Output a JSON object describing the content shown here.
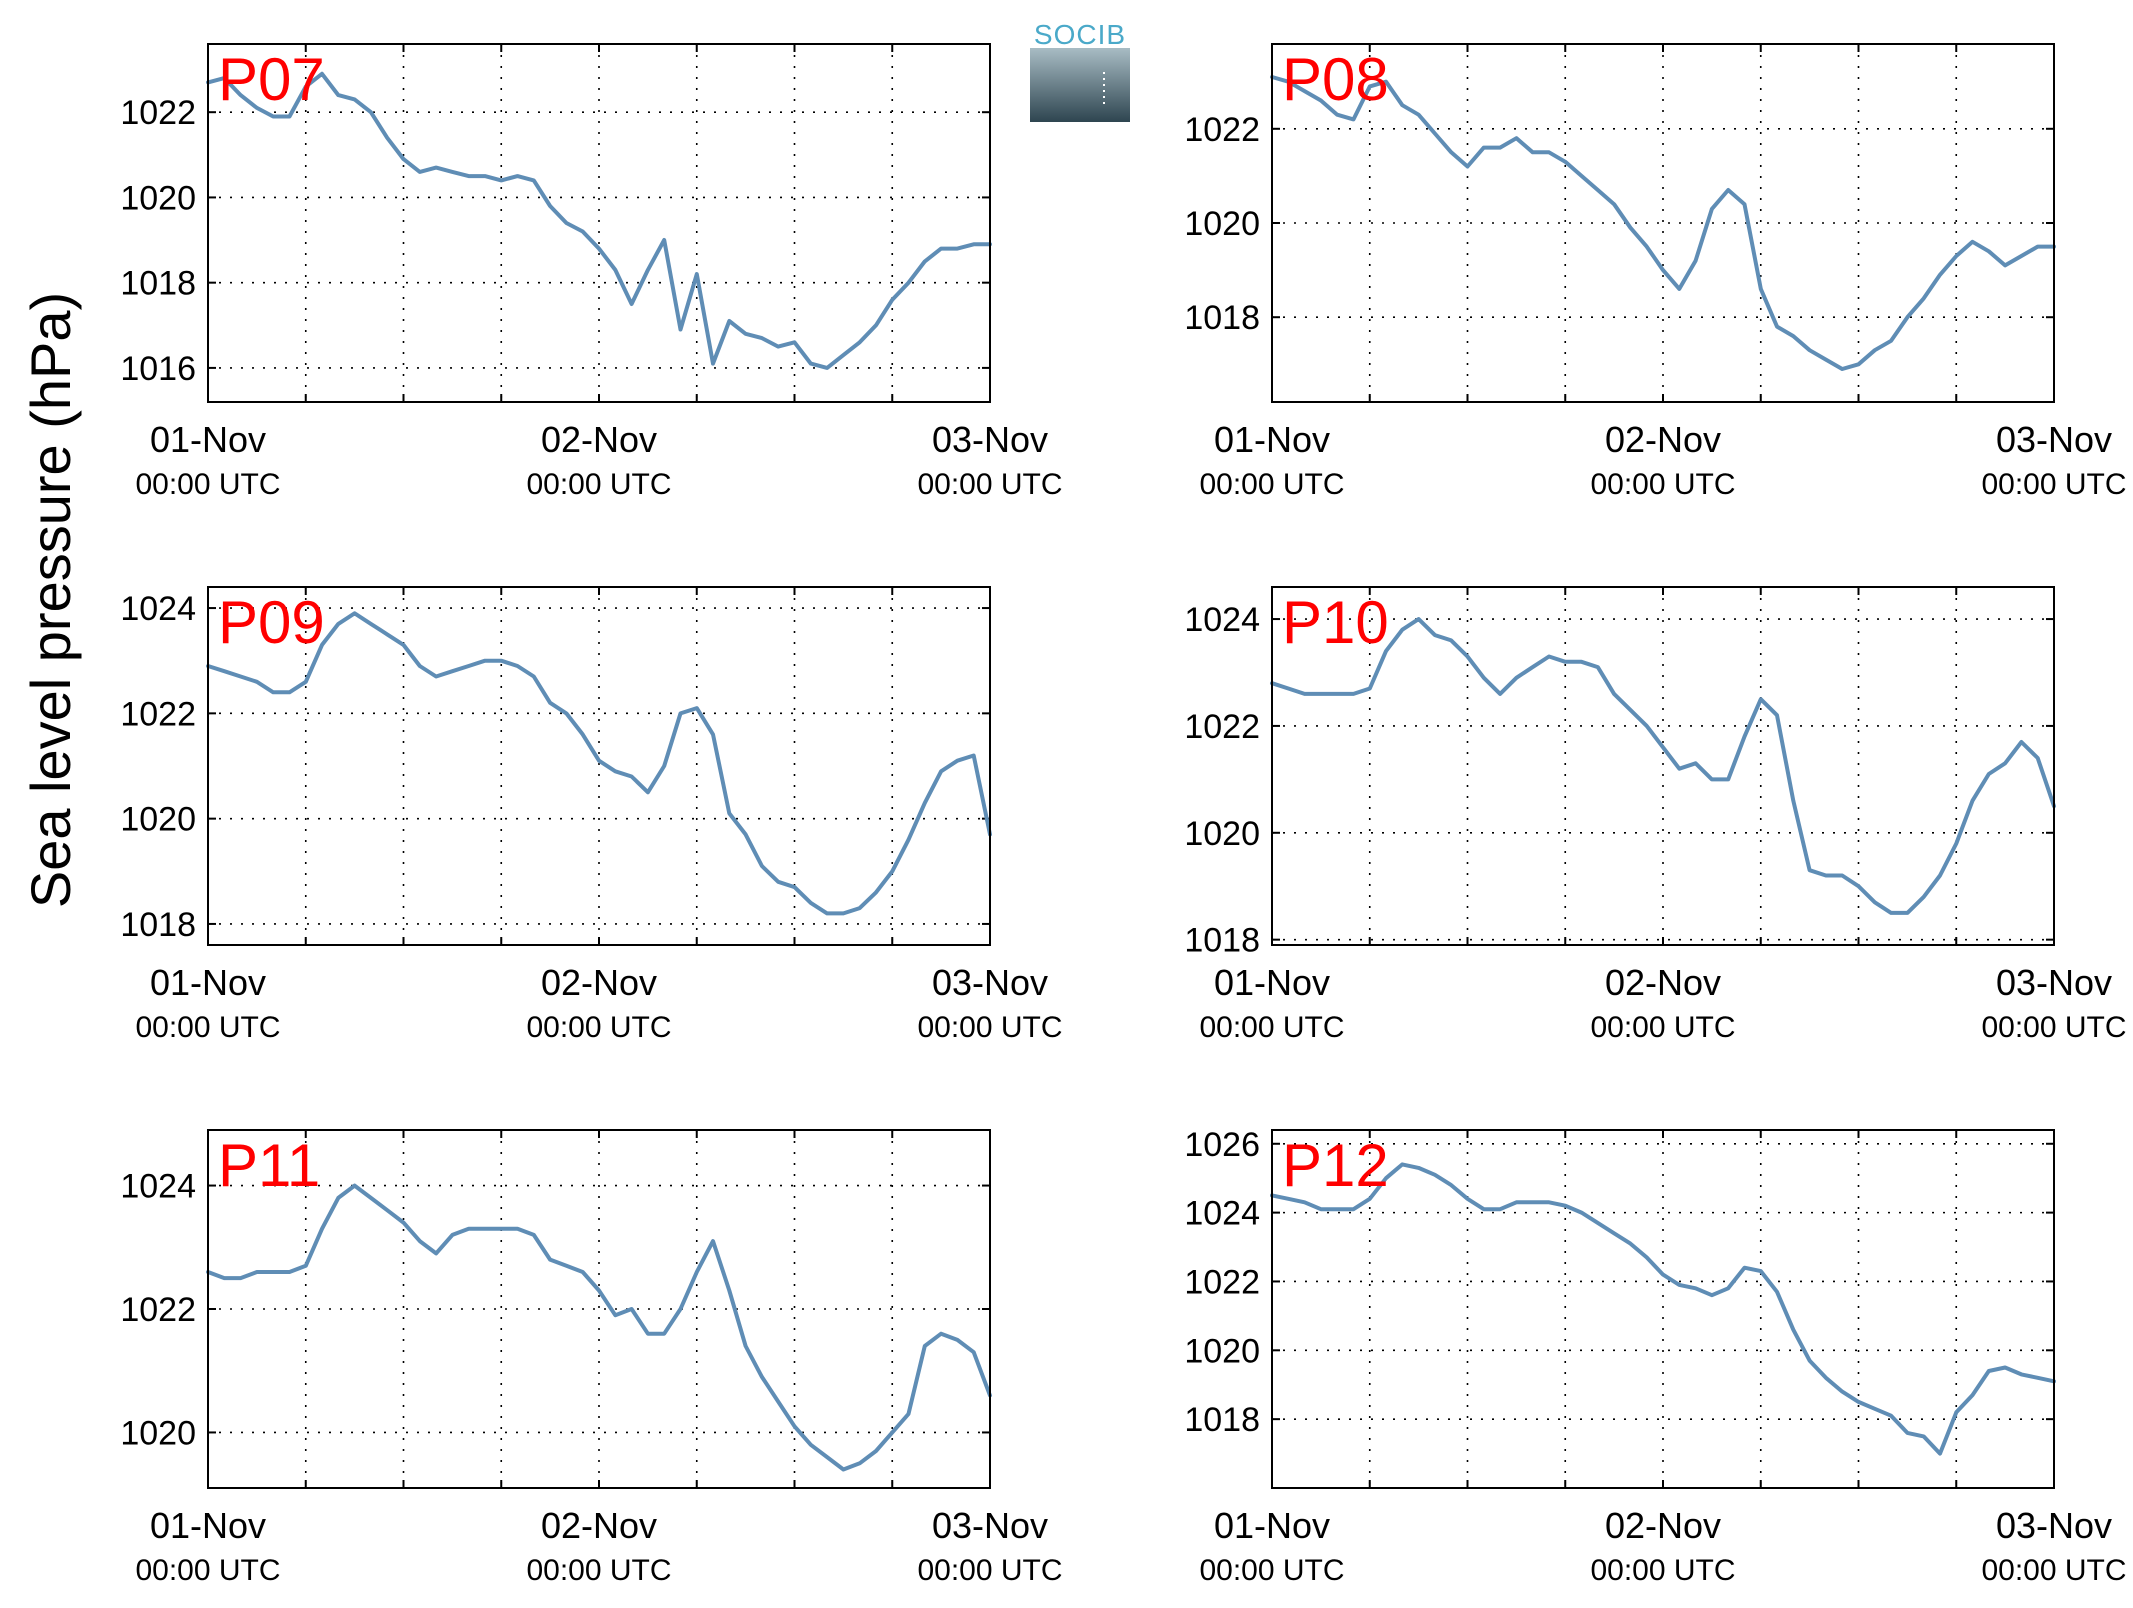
{
  "logo": {
    "text": "SOCIB"
  },
  "figure": {
    "ylabel": "Sea level pressure (hPa)"
  },
  "chart_data": [
    {
      "type": "line",
      "title": "P07",
      "x_tick_labels": [
        [
          "01-Nov",
          "00:00 UTC"
        ],
        [
          "02-Nov",
          "00:00 UTC"
        ],
        [
          "03-Nov",
          "00:00 UTC"
        ]
      ],
      "xlim_hours": [
        0,
        48
      ],
      "ylim": [
        1015.2,
        1023.6
      ],
      "yticks": [
        1016,
        1018,
        1020,
        1022
      ],
      "color": "#5f8db5",
      "series": [
        {
          "x_hours": [
            0,
            1,
            2,
            3,
            4,
            5,
            6,
            7,
            8,
            9,
            10,
            11,
            12,
            13,
            14,
            15,
            16,
            17,
            18,
            19,
            20,
            21,
            22,
            23,
            24,
            25,
            26,
            27,
            28,
            29,
            30,
            31,
            32,
            33,
            34,
            35,
            36,
            37,
            38,
            39,
            40,
            41,
            42,
            43,
            44,
            45,
            46,
            47,
            48
          ],
          "values": [
            1022.7,
            1022.8,
            1022.4,
            1022.1,
            1021.9,
            1021.9,
            1022.6,
            1022.9,
            1022.4,
            1022.3,
            1022.0,
            1021.4,
            1020.9,
            1020.6,
            1020.7,
            1020.6,
            1020.5,
            1020.5,
            1020.4,
            1020.5,
            1020.4,
            1019.8,
            1019.4,
            1019.2,
            1018.8,
            1018.3,
            1017.5,
            1018.3,
            1019.0,
            1016.9,
            1018.2,
            1016.1,
            1017.1,
            1016.8,
            1016.7,
            1016.5,
            1016.6,
            1016.1,
            1016.0,
            1016.3,
            1016.6,
            1017.0,
            1017.6,
            1018.0,
            1018.5,
            1018.8,
            1018.8,
            1018.9,
            1018.9
          ]
        }
      ]
    },
    {
      "type": "line",
      "title": "P08",
      "x_tick_labels": [
        [
          "01-Nov",
          "00:00 UTC"
        ],
        [
          "02-Nov",
          "00:00 UTC"
        ],
        [
          "03-Nov",
          "00:00 UTC"
        ]
      ],
      "xlim_hours": [
        0,
        48
      ],
      "ylim": [
        1016.2,
        1023.8
      ],
      "yticks": [
        1018,
        1020,
        1022
      ],
      "color": "#5f8db5",
      "series": [
        {
          "x_hours": [
            0,
            1,
            2,
            3,
            4,
            5,
            6,
            7,
            8,
            9,
            10,
            11,
            12,
            13,
            14,
            15,
            16,
            17,
            18,
            19,
            20,
            21,
            22,
            23,
            24,
            25,
            26,
            27,
            28,
            29,
            30,
            31,
            32,
            33,
            34,
            35,
            36,
            37,
            38,
            39,
            40,
            41,
            42,
            43,
            44,
            45,
            46,
            47,
            48
          ],
          "values": [
            1023.1,
            1023.0,
            1022.8,
            1022.6,
            1022.3,
            1022.2,
            1022.9,
            1023.0,
            1022.5,
            1022.3,
            1021.9,
            1021.5,
            1021.2,
            1021.6,
            1021.6,
            1021.8,
            1021.5,
            1021.5,
            1021.3,
            1021.0,
            1020.7,
            1020.4,
            1019.9,
            1019.5,
            1019.0,
            1018.6,
            1019.2,
            1020.3,
            1020.7,
            1020.4,
            1018.6,
            1017.8,
            1017.6,
            1017.3,
            1017.1,
            1016.9,
            1017.0,
            1017.3,
            1017.5,
            1018.0,
            1018.4,
            1018.9,
            1019.3,
            1019.6,
            1019.4,
            1019.1,
            1019.3,
            1019.5,
            1019.5
          ]
        }
      ]
    },
    {
      "type": "line",
      "title": "P09",
      "x_tick_labels": [
        [
          "01-Nov",
          "00:00 UTC"
        ],
        [
          "02-Nov",
          "00:00 UTC"
        ],
        [
          "03-Nov",
          "00:00 UTC"
        ]
      ],
      "xlim_hours": [
        0,
        48
      ],
      "ylim": [
        1017.6,
        1024.4
      ],
      "yticks": [
        1018,
        1020,
        1022,
        1024
      ],
      "color": "#5f8db5",
      "series": [
        {
          "x_hours": [
            0,
            1,
            2,
            3,
            4,
            5,
            6,
            7,
            8,
            9,
            10,
            11,
            12,
            13,
            14,
            15,
            16,
            17,
            18,
            19,
            20,
            21,
            22,
            23,
            24,
            25,
            26,
            27,
            28,
            29,
            30,
            31,
            32,
            33,
            34,
            35,
            36,
            37,
            38,
            39,
            40,
            41,
            42,
            43,
            44,
            45,
            46,
            47,
            48
          ],
          "values": [
            1022.9,
            1022.8,
            1022.7,
            1022.6,
            1022.4,
            1022.4,
            1022.6,
            1023.3,
            1023.7,
            1023.9,
            1023.7,
            1023.5,
            1023.3,
            1022.9,
            1022.7,
            1022.8,
            1022.9,
            1023.0,
            1023.0,
            1022.9,
            1022.7,
            1022.2,
            1022.0,
            1021.6,
            1021.1,
            1020.9,
            1020.8,
            1020.5,
            1021.0,
            1022.0,
            1022.1,
            1021.6,
            1020.1,
            1019.7,
            1019.1,
            1018.8,
            1018.7,
            1018.4,
            1018.2,
            1018.2,
            1018.3,
            1018.6,
            1019.0,
            1019.6,
            1020.3,
            1020.9,
            1021.1,
            1021.2,
            1019.7
          ]
        }
      ]
    },
    {
      "type": "line",
      "title": "P10",
      "x_tick_labels": [
        [
          "01-Nov",
          "00:00 UTC"
        ],
        [
          "02-Nov",
          "00:00 UTC"
        ],
        [
          "03-Nov",
          "00:00 UTC"
        ]
      ],
      "xlim_hours": [
        0,
        48
      ],
      "ylim": [
        1017.9,
        1024.6
      ],
      "yticks": [
        1018,
        1020,
        1022,
        1024
      ],
      "color": "#5f8db5",
      "series": [
        {
          "x_hours": [
            0,
            1,
            2,
            3,
            4,
            5,
            6,
            7,
            8,
            9,
            10,
            11,
            12,
            13,
            14,
            15,
            16,
            17,
            18,
            19,
            20,
            21,
            22,
            23,
            24,
            25,
            26,
            27,
            28,
            29,
            30,
            31,
            32,
            33,
            34,
            35,
            36,
            37,
            38,
            39,
            40,
            41,
            42,
            43,
            44,
            45,
            46,
            47,
            48
          ],
          "values": [
            1022.8,
            1022.7,
            1022.6,
            1022.6,
            1022.6,
            1022.6,
            1022.7,
            1023.4,
            1023.8,
            1024.0,
            1023.7,
            1023.6,
            1023.3,
            1022.9,
            1022.6,
            1022.9,
            1023.1,
            1023.3,
            1023.2,
            1023.2,
            1023.1,
            1022.6,
            1022.3,
            1022.0,
            1021.6,
            1021.2,
            1021.3,
            1021.0,
            1021.0,
            1021.8,
            1022.5,
            1022.2,
            1020.6,
            1019.3,
            1019.2,
            1019.2,
            1019.0,
            1018.7,
            1018.5,
            1018.5,
            1018.8,
            1019.2,
            1019.8,
            1020.6,
            1021.1,
            1021.3,
            1021.7,
            1021.4,
            1020.5
          ]
        }
      ]
    },
    {
      "type": "line",
      "title": "P11",
      "x_tick_labels": [
        [
          "01-Nov",
          "00:00 UTC"
        ],
        [
          "02-Nov",
          "00:00 UTC"
        ],
        [
          "03-Nov",
          "00:00 UTC"
        ]
      ],
      "xlim_hours": [
        0,
        48
      ],
      "ylim": [
        1019.1,
        1024.9
      ],
      "yticks": [
        1020,
        1022,
        1024
      ],
      "color": "#5f8db5",
      "series": [
        {
          "x_hours": [
            0,
            1,
            2,
            3,
            4,
            5,
            6,
            7,
            8,
            9,
            10,
            11,
            12,
            13,
            14,
            15,
            16,
            17,
            18,
            19,
            20,
            21,
            22,
            23,
            24,
            25,
            26,
            27,
            28,
            29,
            30,
            31,
            32,
            33,
            34,
            35,
            36,
            37,
            38,
            39,
            40,
            41,
            42,
            43,
            44,
            45,
            46,
            47,
            48
          ],
          "values": [
            1022.6,
            1022.5,
            1022.5,
            1022.6,
            1022.6,
            1022.6,
            1022.7,
            1023.3,
            1023.8,
            1024.0,
            1023.8,
            1023.6,
            1023.4,
            1023.1,
            1022.9,
            1023.2,
            1023.3,
            1023.3,
            1023.3,
            1023.3,
            1023.2,
            1022.8,
            1022.7,
            1022.6,
            1022.3,
            1021.9,
            1022.0,
            1021.6,
            1021.6,
            1022.0,
            1022.6,
            1023.1,
            1022.3,
            1021.4,
            1020.9,
            1020.5,
            1020.1,
            1019.8,
            1019.6,
            1019.4,
            1019.5,
            1019.7,
            1020.0,
            1020.3,
            1021.4,
            1021.6,
            1021.5,
            1021.3,
            1020.6
          ]
        }
      ]
    },
    {
      "type": "line",
      "title": "P12",
      "x_tick_labels": [
        [
          "01-Nov",
          "00:00 UTC"
        ],
        [
          "02-Nov",
          "00:00 UTC"
        ],
        [
          "03-Nov",
          "00:00 UTC"
        ]
      ],
      "xlim_hours": [
        0,
        48
      ],
      "ylim": [
        1016.0,
        1026.4
      ],
      "yticks": [
        1018,
        1020,
        1022,
        1024,
        1026
      ],
      "color": "#5f8db5",
      "series": [
        {
          "x_hours": [
            0,
            1,
            2,
            3,
            4,
            5,
            6,
            7,
            8,
            9,
            10,
            11,
            12,
            13,
            14,
            15,
            16,
            17,
            18,
            19,
            20,
            21,
            22,
            23,
            24,
            25,
            26,
            27,
            28,
            29,
            30,
            31,
            32,
            33,
            34,
            35,
            36,
            37,
            38,
            39,
            40,
            41,
            42,
            43,
            44,
            45,
            46,
            47,
            48
          ],
          "values": [
            1024.5,
            1024.4,
            1024.3,
            1024.1,
            1024.1,
            1024.1,
            1024.4,
            1025.0,
            1025.4,
            1025.3,
            1025.1,
            1024.8,
            1024.4,
            1024.1,
            1024.1,
            1024.3,
            1024.3,
            1024.3,
            1024.2,
            1024.0,
            1023.7,
            1023.4,
            1023.1,
            1022.7,
            1022.2,
            1021.9,
            1021.8,
            1021.6,
            1021.8,
            1022.4,
            1022.3,
            1021.7,
            1020.6,
            1019.7,
            1019.2,
            1018.8,
            1018.5,
            1018.3,
            1018.1,
            1017.6,
            1017.5,
            1017.0,
            1018.2,
            1018.7,
            1019.4,
            1019.5,
            1019.3,
            1019.2,
            1019.1
          ]
        }
      ]
    }
  ]
}
